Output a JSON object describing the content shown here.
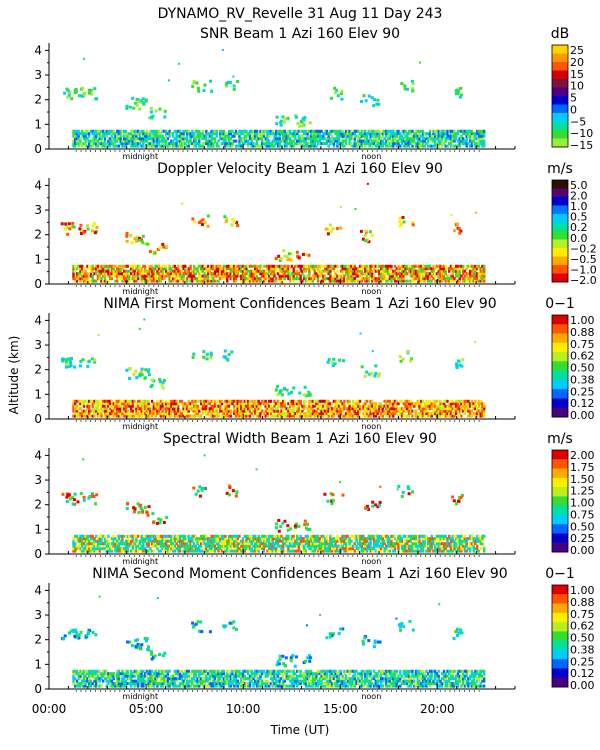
{
  "figure": {
    "title": "DYNAMO_RV_Revelle  31 Aug 11 Day 243",
    "ylabel": "Altitude (km)",
    "xlabel": "Time (UT)",
    "xticks": [
      "00:00",
      "05:00",
      "10:00",
      "15:00",
      "20:00"
    ],
    "midnight_label": "midnight",
    "noon_label": "noon"
  },
  "chart_data": [
    {
      "type": "heatmap",
      "title": "SNR Beam 1 Azi 160 Elev 90",
      "unit": "dB",
      "xlim": [
        0,
        24
      ],
      "ylim": [
        0,
        4.3
      ],
      "yticks": [
        "0",
        "1",
        "2",
        "3",
        "4"
      ],
      "colorbar_labels": [
        "25",
        "20",
        "15",
        "10",
        "5",
        "0",
        "−5",
        "−10",
        "−15"
      ],
      "colorbar_colors": [
        "#ffd400",
        "#ff9900",
        "#ff5500",
        "#d40000",
        "#801040",
        "#4b0082",
        "#0000cc",
        "#0066ff",
        "#00ccff",
        "#00e0a0",
        "#33dd33",
        "#99ee33"
      ],
      "scatter_colors": [
        "#33dd33",
        "#99ee33",
        "#00e0a0",
        "#00ccff"
      ],
      "base_colors": [
        "#00ccff",
        "#00e0a0",
        "#33dd33",
        "#99ee33",
        "#0066ff"
      ]
    },
    {
      "type": "heatmap",
      "title": "Doppler Velocity Beam 1 Azi 160 Elev 90",
      "unit": "m/s",
      "xlim": [
        0,
        24
      ],
      "ylim": [
        0,
        4.3
      ],
      "yticks": [
        "0",
        "1",
        "2",
        "3",
        "4"
      ],
      "colorbar_labels": [
        "5.0",
        "2.0",
        "1.0",
        "0.5",
        "0.2",
        "0.0",
        "−0.2",
        "−0.5",
        "−1.0",
        "−2.0"
      ],
      "colorbar_colors": [
        "#2a1000",
        "#5a0070",
        "#0000cc",
        "#0077ff",
        "#00ccff",
        "#00e0a0",
        "#33dd33",
        "#bbee22",
        "#ffee00",
        "#ffaa00",
        "#ff5500",
        "#dd0000"
      ],
      "scatter_colors": [
        "#33dd33",
        "#bbee22",
        "#ffee00",
        "#ffaa00",
        "#ff5500",
        "#dd0000"
      ],
      "base_colors": [
        "#dd0000",
        "#ff5500",
        "#ffaa00",
        "#ffee00",
        "#33dd33"
      ]
    },
    {
      "type": "heatmap",
      "title": "NIMA First Moment Confidences Beam 1 Azi 160 Elev 90",
      "unit": "0−1",
      "xlim": [
        0,
        24
      ],
      "ylim": [
        0,
        4.3
      ],
      "yticks": [
        "0",
        "1",
        "2",
        "3",
        "4"
      ],
      "colorbar_labels": [
        "1.00",
        "0.88",
        "0.75",
        "0.62",
        "0.50",
        "0.38",
        "0.25",
        "0.12",
        "0.00"
      ],
      "colorbar_colors": [
        "#dd0000",
        "#ff5500",
        "#ffaa00",
        "#ffee00",
        "#bbee22",
        "#33dd33",
        "#00e0a0",
        "#00ccff",
        "#0066ff",
        "#0000cc",
        "#4b0082"
      ],
      "scatter_colors": [
        "#33dd33",
        "#00e0a0",
        "#00ccff",
        "#bbee22"
      ],
      "base_colors": [
        "#ffaa00",
        "#ff5500",
        "#ffee00",
        "#dd0000",
        "#bbee22"
      ]
    },
    {
      "type": "heatmap",
      "title": "Spectral Width Beam 1 Azi 160 Elev 90",
      "unit": "m/s",
      "xlim": [
        0,
        24
      ],
      "ylim": [
        0,
        4.3
      ],
      "yticks": [
        "0",
        "1",
        "2",
        "3",
        "4"
      ],
      "colorbar_labels": [
        "2.00",
        "1.75",
        "1.50",
        "1.25",
        "1.00",
        "0.75",
        "0.50",
        "0.25",
        "0.00"
      ],
      "colorbar_colors": [
        "#dd0000",
        "#ff5500",
        "#ffaa00",
        "#ffee00",
        "#bbee22",
        "#33dd33",
        "#00e0a0",
        "#00ccff",
        "#0066ff",
        "#0000cc",
        "#4b0082"
      ],
      "scatter_colors": [
        "#33dd33",
        "#00e0a0",
        "#ff5500",
        "#dd0000"
      ],
      "base_colors": [
        "#00ccff",
        "#00e0a0",
        "#33dd33",
        "#ffee00",
        "#ff5500"
      ]
    },
    {
      "type": "heatmap",
      "title": "NIMA Second Moment Confidences Beam 1 Azi 160 Elev 90",
      "unit": "0−1",
      "xlim": [
        0,
        24
      ],
      "ylim": [
        0,
        4.3
      ],
      "yticks": [
        "0",
        "1",
        "2",
        "3",
        "4"
      ],
      "colorbar_labels": [
        "1.00",
        "0.88",
        "0.75",
        "0.62",
        "0.50",
        "0.38",
        "0.25",
        "0.12",
        "0.00"
      ],
      "colorbar_colors": [
        "#dd0000",
        "#ff5500",
        "#ffaa00",
        "#ffee00",
        "#bbee22",
        "#33dd33",
        "#00e0a0",
        "#00ccff",
        "#0066ff",
        "#0000cc",
        "#4b0082"
      ],
      "scatter_colors": [
        "#00ccff",
        "#0066ff",
        "#00e0a0",
        "#33dd33"
      ],
      "base_colors": [
        "#00e0a0",
        "#00ccff",
        "#33dd33",
        "#0066ff",
        "#bbee22"
      ]
    }
  ]
}
